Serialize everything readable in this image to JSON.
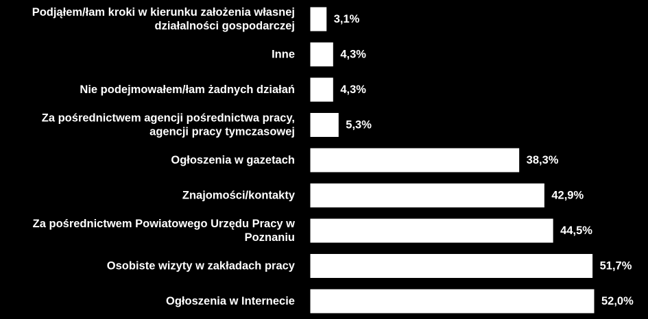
{
  "chart_data": {
    "type": "bar",
    "orientation": "horizontal",
    "categories": [
      "Podjąłem/łam kroki w kierunku założenia własnej działalności gospodarczej",
      "Inne",
      "Nie podejmowałem/łam żadnych działań",
      "Za pośrednictwem agencji pośrednictwa pracy, agencji pracy tymczasowej",
      "Ogłoszenia w gazetach",
      "Znajomości/kontakty",
      "Za pośrednictwem Powiatowego Urzędu Pracy w Poznaniu",
      "Osobiste wizyty w zakładach pracy",
      "Ogłoszenia w Internecie"
    ],
    "category_lines": [
      [
        "Podjąłem/łam kroki w kierunku założenia własnej",
        "działalności gospodarczej"
      ],
      [
        "Inne"
      ],
      [
        "Nie podejmowałem/łam żadnych działań"
      ],
      [
        "Za pośrednictwem agencji pośrednictwa pracy,",
        "agencji pracy tymczasowej"
      ],
      [
        "Ogłoszenia w gazetach"
      ],
      [
        "Znajomości/kontakty"
      ],
      [
        "Za pośrednictwem Powiatowego Urzędu Pracy w",
        "Poznaniu"
      ],
      [
        "Osobiste wizyty w zakładach pracy"
      ],
      [
        "Ogłoszenia w Internecie"
      ]
    ],
    "values": [
      3.1,
      4.3,
      4.3,
      5.3,
      38.3,
      42.9,
      44.5,
      51.7,
      52.0
    ],
    "value_labels": [
      "3,1%",
      "4,3%",
      "4,3%",
      "5,3%",
      "38,3%",
      "42,9%",
      "44,5%",
      "51,7%",
      "52,0%"
    ],
    "xlim": [
      0,
      52
    ],
    "colors": {
      "background": "#000000",
      "bar": "#ffffff",
      "bar_stroke": "#000000",
      "text": "#ffffff"
    }
  }
}
